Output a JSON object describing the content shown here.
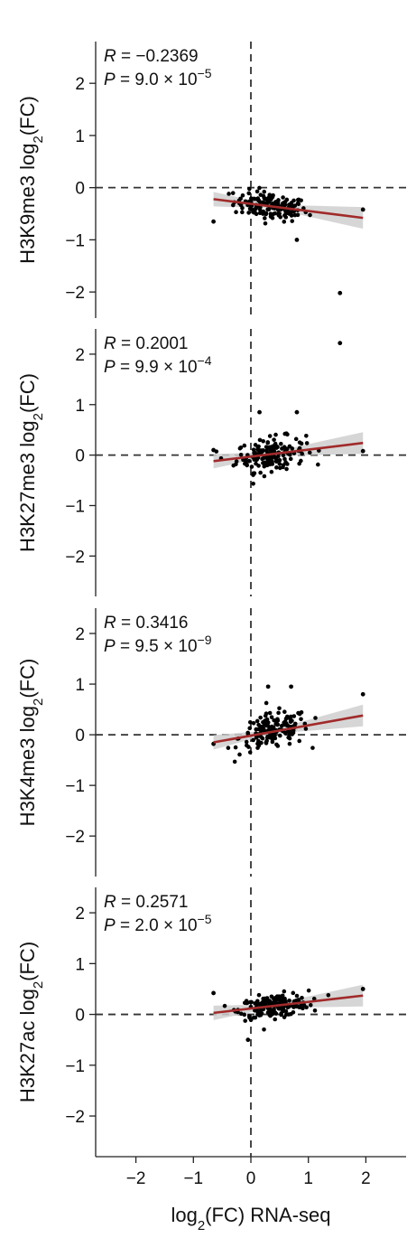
{
  "chart_data": [
    {
      "type": "scatter",
      "ylabel": {
        "main": "H3K9me3 log",
        "sub": "2",
        "suffix": "(FC)"
      },
      "stat_r": {
        "label": "R",
        "value": " = −0.2369"
      },
      "stat_p": {
        "label": "P",
        "value": " = 9.0 × 10",
        "exp": "−5"
      },
      "xlim": [
        -2.7,
        2.7
      ],
      "ylim": [
        -2.5,
        2.8
      ],
      "yticks": [
        2,
        1,
        0,
        -1,
        -2
      ],
      "fit": {
        "x": [
          -0.65,
          1.95
        ],
        "y": [
          -0.22,
          -0.58
        ]
      },
      "outliers": [
        [
          1.55,
          -2.02
        ],
        [
          1.95,
          -0.42
        ],
        [
          0.8,
          -1.0
        ],
        [
          -0.65,
          -0.65
        ]
      ]
    },
    {
      "type": "scatter",
      "ylabel": {
        "main": "H3K27me3 log",
        "sub": "2",
        "suffix": "(FC)"
      },
      "stat_r": {
        "label": "R",
        "value": " = 0.2001"
      },
      "stat_p": {
        "label": "P",
        "value": " = 9.9 × 10",
        "exp": "−4"
      },
      "xlim": [
        -2.7,
        2.7
      ],
      "ylim": [
        -2.8,
        2.5
      ],
      "yticks": [
        2,
        1,
        0,
        -1,
        -2
      ],
      "fit": {
        "x": [
          -0.65,
          1.95
        ],
        "y": [
          -0.12,
          0.24
        ]
      },
      "outliers": [
        [
          1.55,
          2.22
        ],
        [
          1.95,
          0.08
        ],
        [
          0.8,
          0.85
        ],
        [
          0.15,
          0.85
        ],
        [
          -0.65,
          0.1
        ]
      ]
    },
    {
      "type": "scatter",
      "ylabel": {
        "main": "H3K4me3 log",
        "sub": "2",
        "suffix": "(FC)"
      },
      "stat_r": {
        "label": "R",
        "value": " = 0.3416"
      },
      "stat_p": {
        "label": "P",
        "value": " = 9.5 × 10",
        "exp": "−9"
      },
      "xlim": [
        -2.7,
        2.7
      ],
      "ylim": [
        -2.8,
        2.5
      ],
      "yticks": [
        2,
        1,
        0,
        -1,
        -2
      ],
      "fit": {
        "x": [
          -0.65,
          1.95
        ],
        "y": [
          -0.15,
          0.38
        ]
      },
      "outliers": [
        [
          1.95,
          0.8
        ],
        [
          0.7,
          0.95
        ],
        [
          0.3,
          0.95
        ],
        [
          -0.65,
          -0.18
        ]
      ]
    },
    {
      "type": "scatter",
      "ylabel": {
        "main": "H3K27ac log",
        "sub": "2",
        "suffix": "(FC)"
      },
      "stat_r": {
        "label": "R",
        "value": " = 0.2571"
      },
      "stat_p": {
        "label": "P",
        "value": " = 2.0 × 10",
        "exp": "−5"
      },
      "xlim": [
        -2.7,
        2.7
      ],
      "ylim": [
        -2.8,
        2.5
      ],
      "yticks": [
        2,
        1,
        0,
        -1,
        -2
      ],
      "fit": {
        "x": [
          -0.65,
          1.95
        ],
        "y": [
          0.03,
          0.37
        ]
      },
      "outliers": [
        [
          1.95,
          0.5
        ],
        [
          -0.65,
          0.42
        ],
        [
          -0.05,
          -0.5
        ]
      ]
    }
  ],
  "xaxis": {
    "ticks": [
      -2,
      -1,
      0,
      1,
      2
    ],
    "label": {
      "main": "log",
      "sub": "2",
      "suffix": "(FC) RNA-seq"
    }
  }
}
